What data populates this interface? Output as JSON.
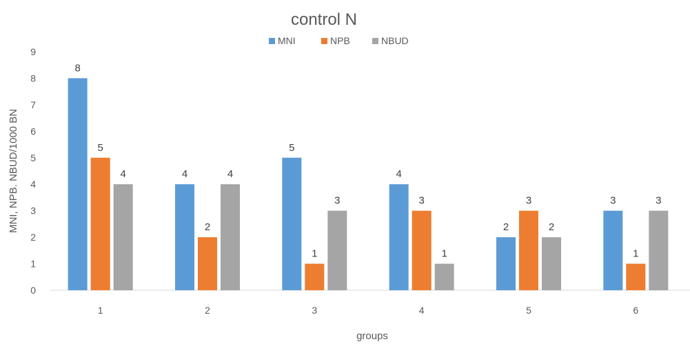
{
  "chart_data": {
    "type": "bar",
    "title": "control N",
    "xlabel": "groups",
    "ylabel": "MNI, NPB. NBUD/1000 BN",
    "categories": [
      "1",
      "2",
      "3",
      "4",
      "5",
      "6"
    ],
    "series": [
      {
        "name": "MNI",
        "values": [
          8,
          4,
          5,
          4,
          2,
          3
        ],
        "color": "#5b9bd5"
      },
      {
        "name": "NPB",
        "values": [
          5,
          2,
          1,
          3,
          3,
          1
        ],
        "color": "#ed7d31"
      },
      {
        "name": "NBUD",
        "values": [
          4,
          4,
          3,
          1,
          2,
          3
        ],
        "color": "#a5a5a5"
      }
    ],
    "ylim": [
      0,
      9
    ],
    "yticks": [
      "0",
      "1",
      "2",
      "3",
      "4",
      "5",
      "6",
      "7",
      "8",
      "9"
    ],
    "grid": false,
    "legend_position": "top",
    "data_labels": true
  }
}
